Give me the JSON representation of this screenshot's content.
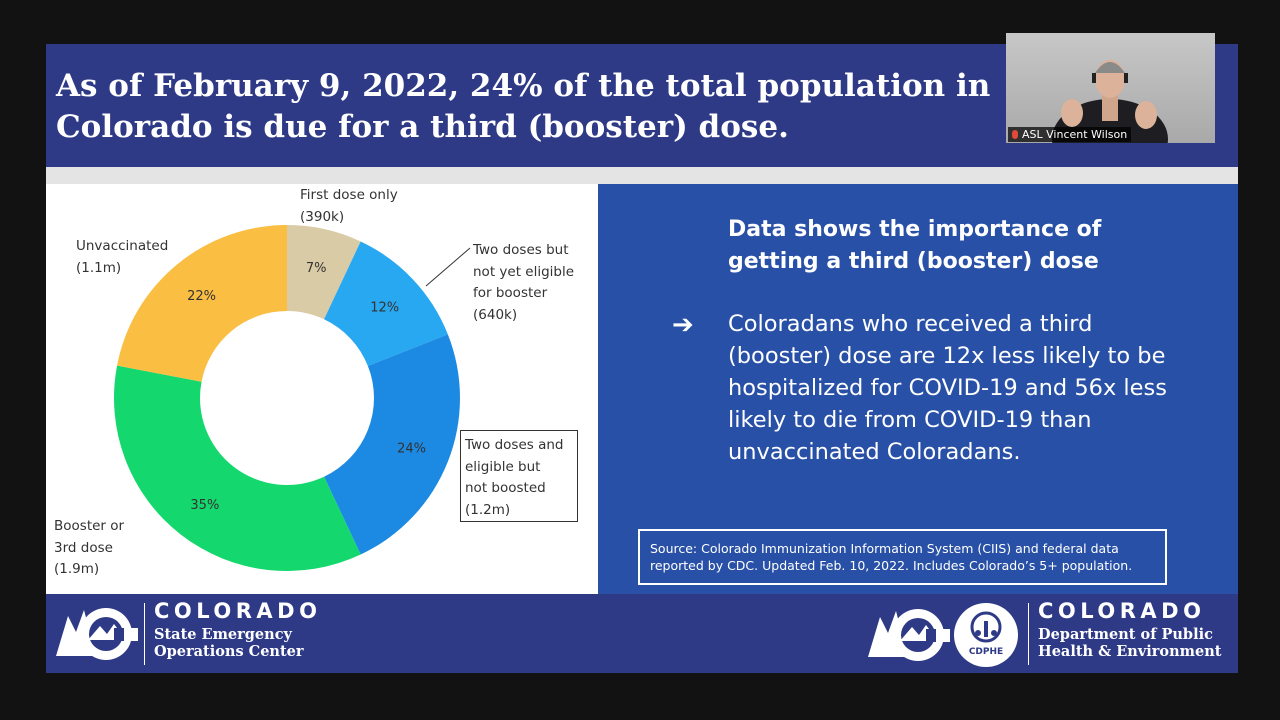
{
  "slide": {
    "title": "As of February 9, 2022, 24% of the total population in Colorado is due for a third (booster) dose.",
    "info_heading": "Data shows the importance of getting a third (booster) dose",
    "bullet_symbol": "➔",
    "bullet_text": "Coloradans who received a third (booster) dose are 12x less likely to be hospitalized for COVID-19 and 56x less likely to die from COVID-19 than unvaccinated Coloradans.",
    "source_text": "Source: Colorado Immunization Information System (CIIS) and federal data reported by CDC. Updated Feb. 10, 2022. Includes Colorado’s 5+ population."
  },
  "chart_data": {
    "type": "pie",
    "subtype": "donut",
    "title": "",
    "slices": [
      {
        "label": "First dose only (390k)",
        "value": 7,
        "color": "#d9cba6"
      },
      {
        "label": "Two doses but not yet eligible for booster (640k)",
        "value": 12,
        "color": "#27a8f0"
      },
      {
        "label": "Two doses and eligible but not boosted (1.2m)",
        "value": 24,
        "color": "#1c8ae2"
      },
      {
        "label": "Booster or 3rd dose (1.9m)",
        "value": 35,
        "color": "#14d86d"
      },
      {
        "label": "Unvaccinated (1.1m)",
        "value": 22,
        "color": "#f9be42"
      }
    ],
    "value_labels": [
      "7%",
      "12%",
      "24%",
      "35%",
      "22%"
    ],
    "callouts": {
      "first_dose": [
        "First dose only",
        "(390k)"
      ],
      "two_doses_not_eligible": [
        "Two doses but",
        "not yet eligible",
        "for booster",
        "(640k)"
      ],
      "two_doses_eligible": [
        "Two doses and",
        "eligible but",
        "not boosted",
        "(1.2m)"
      ],
      "booster": [
        "Booster or",
        "3rd dose",
        "(1.9m)"
      ],
      "unvaccinated": [
        "Unvaccinated",
        "(1.1m)"
      ]
    }
  },
  "footer": {
    "left_brand": "COLORADO",
    "left_sub1": "State Emergency",
    "left_sub2": "Operations Center",
    "right_brand": "COLORADO",
    "right_sub1": "Department of Public",
    "right_sub2": "Health & Environment",
    "cdphe_label": "CDPHE"
  },
  "video": {
    "participant_name": "ASL Vincent Wilson"
  }
}
